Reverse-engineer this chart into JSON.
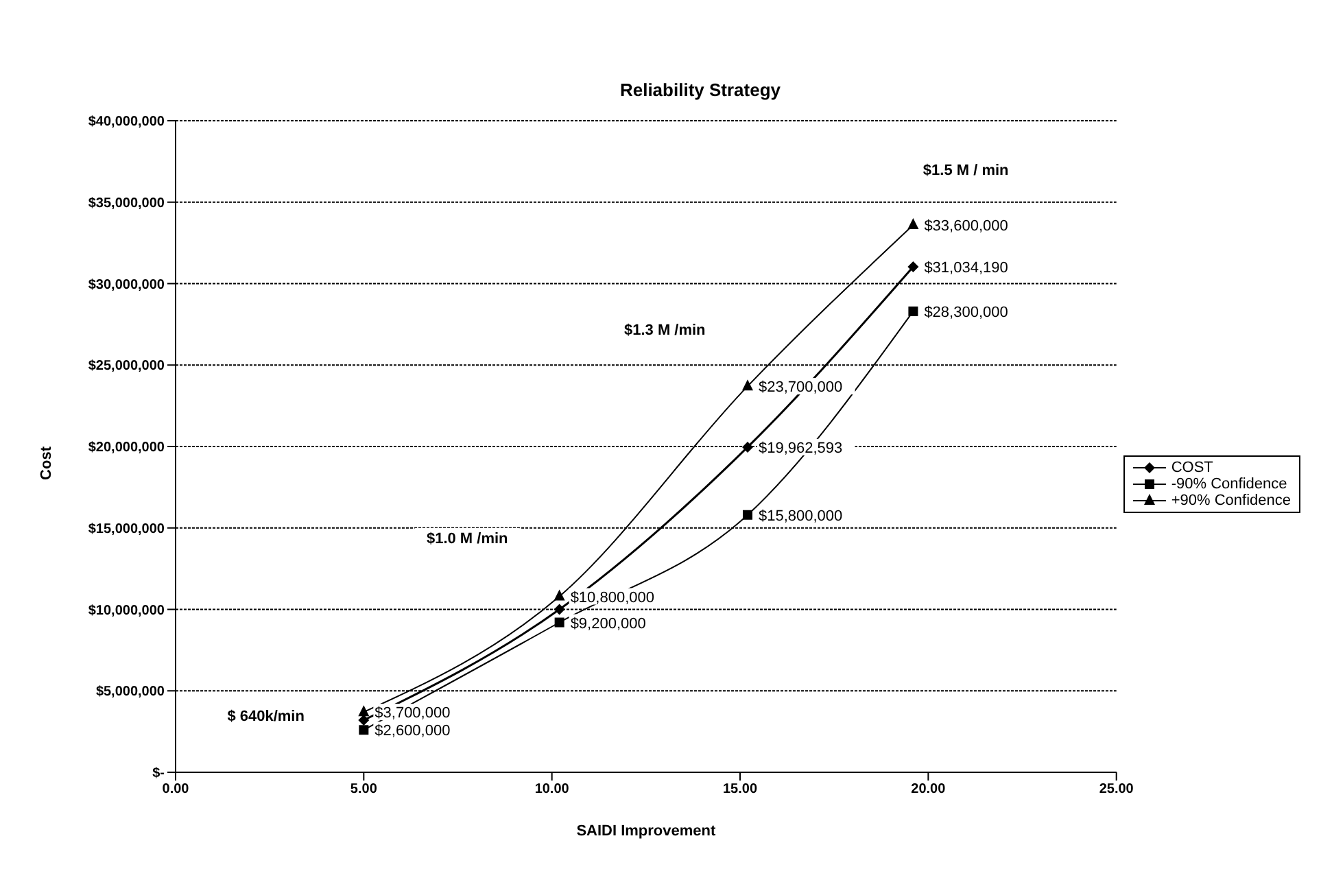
{
  "chart_data": {
    "type": "line",
    "title": "Reliability Strategy",
    "xlabel": "SAIDI Improvement",
    "ylabel": "Cost",
    "x": [
      5.0,
      10.2,
      15.2,
      19.6
    ],
    "series": [
      {
        "name": "COST",
        "color": "#000000",
        "marker": "diamond",
        "values": [
          3200000,
          10000000,
          19962593,
          31034190
        ],
        "value_labels": [
          null,
          null,
          "$19,962,593",
          "$31,034,190"
        ]
      },
      {
        "name": "-90% Confidence",
        "color": "#000000",
        "marker": "square",
        "values": [
          2600000,
          9200000,
          15800000,
          28300000
        ],
        "value_labels": [
          "$2,600,000",
          "$9,200,000",
          "$15,800,000",
          "$28,300,000"
        ]
      },
      {
        "name": "+90% Confidence",
        "color": "#000000",
        "marker": "triangle",
        "values": [
          3700000,
          10800000,
          23700000,
          33600000
        ],
        "value_labels": [
          "$3,700,000",
          "$10,800,000",
          "$23,700,000",
          "$33,600,000"
        ]
      }
    ],
    "xlim": [
      0,
      25
    ],
    "xticks": [
      {
        "value": 0,
        "label": "0.00"
      },
      {
        "value": 5,
        "label": "5.00"
      },
      {
        "value": 10,
        "label": "10.00"
      },
      {
        "value": 15,
        "label": "15.00"
      },
      {
        "value": 20,
        "label": "20.00"
      },
      {
        "value": 25,
        "label": "25.00"
      }
    ],
    "ylim": [
      0,
      40000000
    ],
    "yticks": [
      {
        "value": 0,
        "label": "$-"
      },
      {
        "value": 5000000,
        "label": "$5,000,000"
      },
      {
        "value": 10000000,
        "label": "$10,000,000"
      },
      {
        "value": 15000000,
        "label": "$15,000,000"
      },
      {
        "value": 20000000,
        "label": "$20,000,000"
      },
      {
        "value": 25000000,
        "label": "$25,000,000"
      },
      {
        "value": 30000000,
        "label": "$30,000,000"
      },
      {
        "value": 35000000,
        "label": "$35,000,000"
      },
      {
        "value": 40000000,
        "label": "$40,000,000"
      }
    ],
    "annotations": [
      "$ 640k/min",
      "$1.0 M /min",
      "$1.3 M /min",
      "$1.5 M / min"
    ],
    "grid": "y",
    "legend": "right",
    "line_style": "solid"
  }
}
